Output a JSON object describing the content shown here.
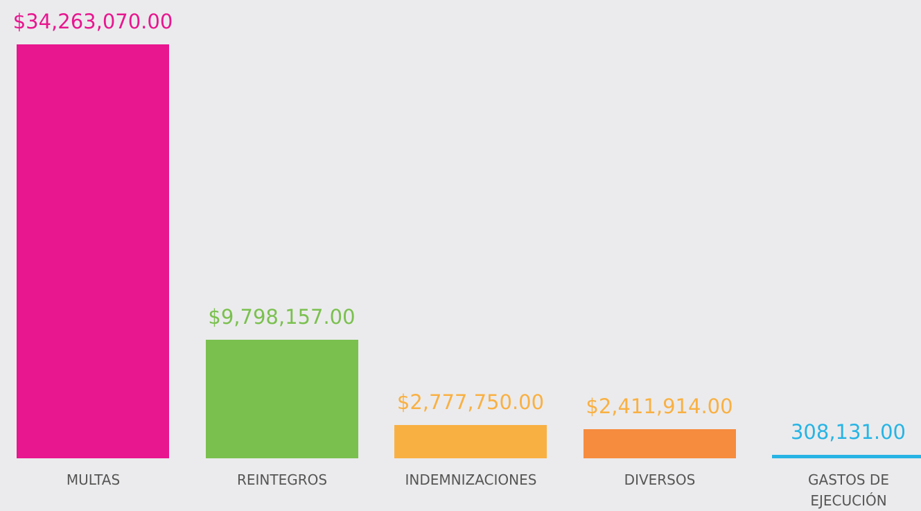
{
  "chart_data": {
    "type": "bar",
    "categories": [
      "MULTAS",
      "REINTEGROS",
      "INDEMNIZACIONES",
      "DIVERSOS",
      "GASTOS DE EJECUCIÓN"
    ],
    "values": [
      34263070,
      9798157,
      2777750,
      2411914,
      308131
    ],
    "value_labels": [
      "$34,263,070.00",
      "$9,798,157.00",
      "$2,777,750.00",
      "$2,411,914.00",
      "308,131.00"
    ],
    "colors": [
      "#e8168f",
      "#7ac04e",
      "#f9b042",
      "#f68c3e",
      "#27b4e4"
    ],
    "value_label_colors": [
      "#e8168f",
      "#7ac04e",
      "#f9b042",
      "#f9b042",
      "#27b4e4"
    ]
  }
}
